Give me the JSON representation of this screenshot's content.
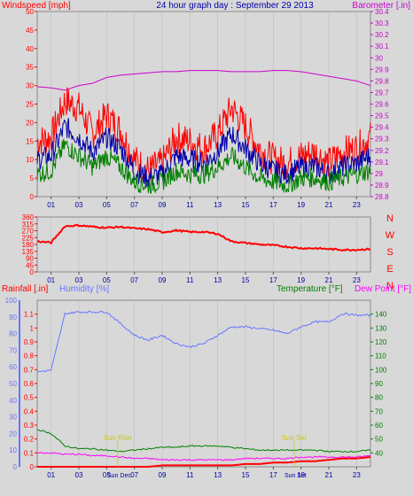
{
  "title": "24 hour graph day : September 29 2013",
  "x_ticks": [
    "01",
    "03",
    "05",
    "07",
    "09",
    "11",
    "13",
    "15",
    "17",
    "19",
    "21",
    "23"
  ],
  "chart_data": [
    {
      "type": "line",
      "left_axis": {
        "label": "Windspeed [mph]",
        "range": [
          0,
          50
        ],
        "ticks": [
          "0",
          "5",
          "10",
          "15",
          "20",
          "25",
          "30",
          "35",
          "40",
          "45",
          "50"
        ]
      },
      "right_axis": {
        "label": "Barometer [.in]",
        "range": [
          28.8,
          30.4
        ],
        "ticks": [
          "28.8",
          "28.9",
          "29",
          "29.1",
          "29.2",
          "29.3",
          "29.4",
          "29.5",
          "29.6",
          "29.7",
          "29.8",
          "29.9",
          "30",
          "30.1",
          "30.2",
          "30.3",
          "30.4"
        ]
      },
      "series": [
        {
          "axis": "right",
          "color": "#cc00cc",
          "hour_values": [
            29.75,
            29.74,
            29.72,
            29.76,
            29.78,
            29.83,
            29.85,
            29.86,
            29.87,
            29.88,
            29.88,
            29.89,
            29.89,
            29.89,
            29.88,
            29.88,
            29.88,
            29.89,
            29.89,
            29.88,
            29.86,
            29.84,
            29.82,
            29.8,
            29.76
          ]
        },
        {
          "axis": "left",
          "color": "#ff0000",
          "hour_values": [
            15,
            16,
            26,
            24,
            17,
            22,
            18,
            10,
            7,
            9,
            16,
            15,
            13,
            17,
            24,
            19,
            13,
            10,
            9,
            11,
            12,
            9,
            12,
            13,
            16
          ]
        },
        {
          "axis": "left",
          "color": "#0000aa",
          "hour_values": [
            10,
            11,
            19,
            16,
            12,
            16,
            13,
            7,
            5,
            6,
            11,
            10,
            9,
            12,
            17,
            13,
            9,
            7,
            6,
            8,
            8,
            6,
            8,
            9,
            11
          ]
        },
        {
          "axis": "left",
          "color": "#008000",
          "hour_values": [
            6,
            7,
            14,
            11,
            8,
            11,
            8,
            4,
            3,
            4,
            7,
            6,
            6,
            8,
            11,
            8,
            5,
            4,
            3,
            5,
            5,
            4,
            5,
            6,
            7
          ]
        }
      ]
    },
    {
      "type": "line",
      "left_axis": {
        "range": [
          0,
          360
        ],
        "ticks": [
          "0",
          "45",
          "90",
          "135",
          "180",
          "225",
          "270",
          "315",
          "360"
        ]
      },
      "right_labels": [
        "N",
        "W",
        "S",
        "E",
        "N"
      ],
      "series": [
        {
          "name": "wind direction",
          "color": "#ff0000",
          "hour_values": [
            200,
            192,
            300,
            305,
            296,
            290,
            295,
            285,
            280,
            260,
            272,
            262,
            262,
            250,
            200,
            190,
            180,
            175,
            165,
            155,
            155,
            150,
            145,
            145,
            150
          ]
        }
      ]
    },
    {
      "type": "line",
      "labels": {
        "rainfall": "Rainfall [.in]",
        "humidity": "Humidity [%]",
        "temperature": "Temperature [°F]",
        "dewpoint": "Dew Point [°F]"
      },
      "left_axis": {
        "range": [
          0,
          1.2
        ],
        "ticks": [
          "0",
          "0.1",
          "0.2",
          "0.3",
          "0.4",
          "0.5",
          "0.6",
          "0.7",
          "0.8",
          "0.9",
          "1",
          "1.1"
        ]
      },
      "humidity_axis": {
        "range": [
          0,
          100
        ],
        "ticks": [
          "0",
          "10",
          "20",
          "30",
          "40",
          "50",
          "60",
          "70",
          "80",
          "90",
          "100"
        ]
      },
      "right_axis": {
        "range": [
          30,
          150
        ],
        "ticks": [
          "40",
          "50",
          "60",
          "70",
          "80",
          "90",
          "100",
          "110",
          "120",
          "130",
          "140"
        ]
      },
      "series": [
        {
          "name": "humidity",
          "axis": "humidity",
          "color": "#6677ff",
          "hour_values": [
            57,
            58,
            92,
            93,
            93,
            93,
            86,
            79,
            76,
            79,
            74,
            72,
            74,
            79,
            84,
            84,
            83,
            82,
            80,
            84,
            87,
            87,
            92,
            91,
            91
          ]
        },
        {
          "name": "temperature",
          "axis": "right",
          "color": "#008000",
          "hour_values": [
            57,
            54,
            45,
            43,
            43,
            42,
            41,
            42,
            43,
            44,
            44,
            45,
            45,
            45,
            44,
            43,
            42,
            42,
            42,
            42,
            42,
            41,
            41,
            41,
            42
          ]
        },
        {
          "name": "dewpoint",
          "axis": "right",
          "color": "#ff00ff",
          "hour_values": [
            40,
            40,
            39,
            39,
            38,
            38,
            37,
            36,
            36,
            35,
            35,
            35,
            35,
            35,
            35,
            36,
            36,
            36,
            36,
            37,
            37,
            37,
            37,
            37,
            38
          ]
        },
        {
          "name": "rainfall",
          "axis": "left",
          "color": "#ff0000",
          "hour_values": [
            0,
            0,
            0,
            0,
            0,
            0,
            0,
            0,
            0,
            0.01,
            0.01,
            0.01,
            0.01,
            0.01,
            0.01,
            0.02,
            0.02,
            0.03,
            0.03,
            0.04,
            0.04,
            0.05,
            0.06,
            0.06,
            0.07
          ]
        }
      ],
      "events": [
        {
          "label": "Sun Rise",
          "hour": 5.8
        },
        {
          "label": "Sun Set",
          "hour": 18.5
        }
      ],
      "time_labels": [
        "Sun Dec",
        "Sun Set"
      ]
    }
  ]
}
